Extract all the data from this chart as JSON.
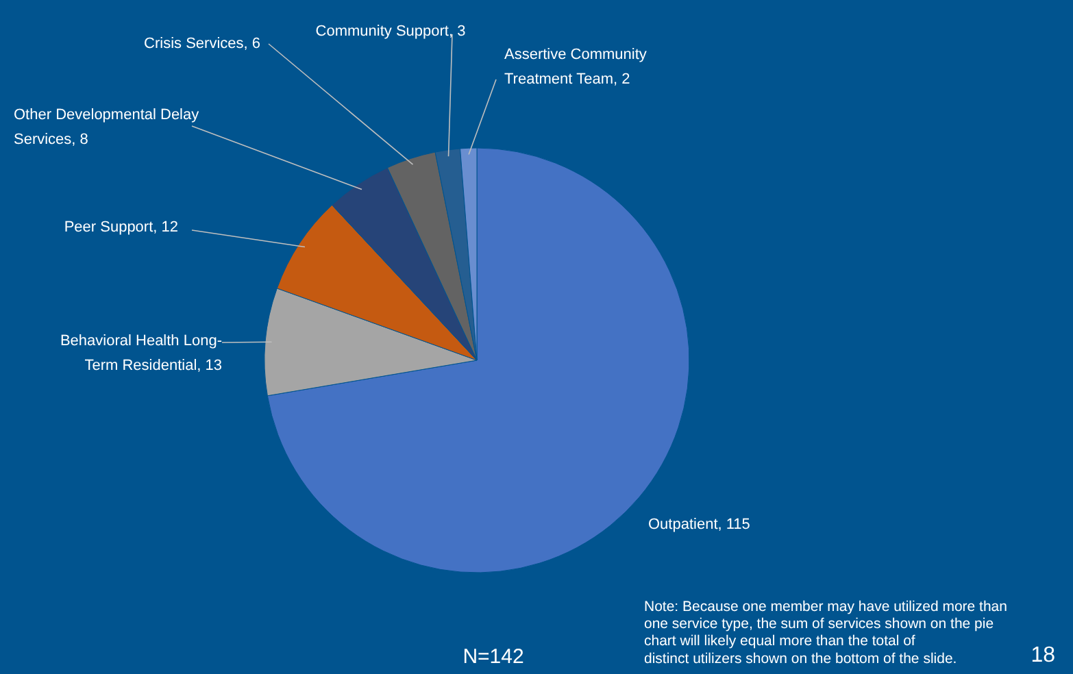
{
  "chart_data": {
    "type": "pie",
    "categories": [
      "Outpatient, 115",
      "Behavioral Health Long-Term Residential, 13",
      "Peer Support, 12",
      "Other Developmental Delay Services, 8",
      "Crisis Services, 6",
      "Community Support, 3",
      "Assertive Community Treatment Team, 2"
    ],
    "values": [
      115,
      13,
      12,
      8,
      6,
      3,
      2
    ],
    "colors": [
      "#4472c4",
      "#a5a5a5",
      "#c55a11",
      "#264478",
      "#636363",
      "#255e91",
      "#698ed0"
    ],
    "annotations": [
      "N=142",
      "Note: Because one member may have utilized more than one service type, the sum of services shown on the pie chart will likely equal more than the total of distinct utilizers shown on the bottom of the slide.",
      "18"
    ]
  }
}
